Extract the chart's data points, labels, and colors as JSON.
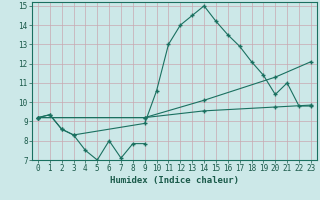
{
  "xlabel": "Humidex (Indice chaleur)",
  "xlim": [
    -0.5,
    23.5
  ],
  "ylim": [
    7,
    15.2
  ],
  "xticks": [
    0,
    1,
    2,
    3,
    4,
    5,
    6,
    7,
    8,
    9,
    10,
    11,
    12,
    13,
    14,
    15,
    16,
    17,
    18,
    19,
    20,
    21,
    22,
    23
  ],
  "yticks": [
    7,
    8,
    9,
    10,
    11,
    12,
    13,
    14,
    15
  ],
  "bg_color": "#cce8e8",
  "line_color": "#1a7060",
  "grid_color": "#c8a8b0",
  "line1_x": [
    0,
    1,
    2,
    3,
    4,
    5,
    6,
    7,
    8,
    9
  ],
  "line1_y": [
    9.2,
    9.35,
    8.6,
    8.3,
    7.5,
    7.0,
    8.0,
    7.1,
    7.85,
    7.85
  ],
  "line2_x": [
    0,
    1,
    2,
    3,
    9,
    10,
    11,
    12,
    13,
    14,
    15,
    16,
    17,
    18,
    19,
    20,
    21,
    22,
    23
  ],
  "line2_y": [
    9.2,
    9.35,
    8.6,
    8.3,
    8.9,
    10.6,
    13.0,
    14.0,
    14.5,
    15.0,
    14.2,
    13.5,
    12.9,
    12.1,
    11.4,
    10.4,
    11.0,
    9.8,
    9.8
  ],
  "line3_x": [
    0,
    9,
    14,
    20,
    23
  ],
  "line3_y": [
    9.2,
    9.2,
    10.1,
    11.3,
    12.1
  ],
  "line4_x": [
    0,
    9,
    14,
    20,
    23
  ],
  "line4_y": [
    9.2,
    9.2,
    9.55,
    9.75,
    9.85
  ]
}
